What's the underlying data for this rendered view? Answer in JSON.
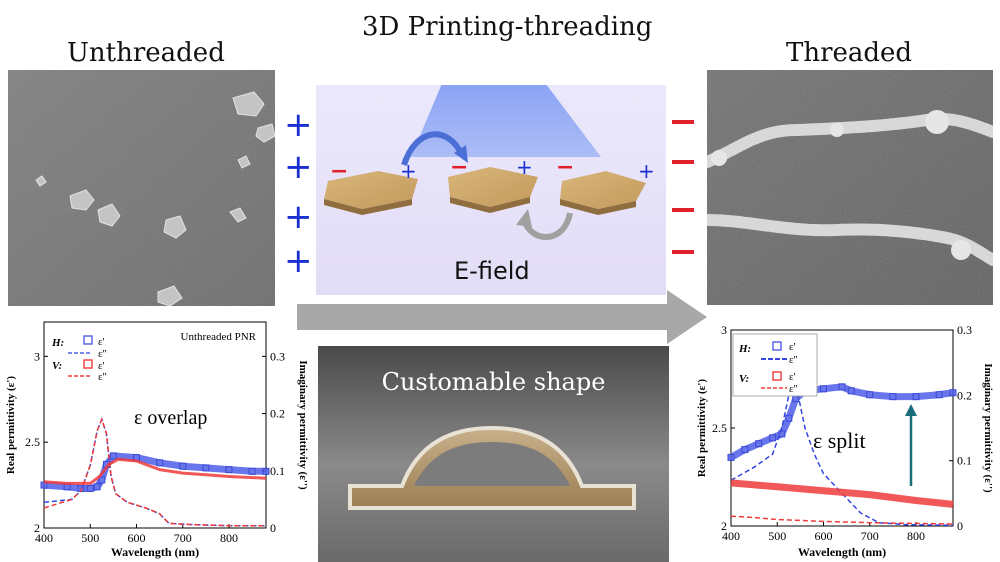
{
  "headings": {
    "unthreaded": "Unthreaded",
    "main": "3D Printing-threading",
    "threaded": "Threaded"
  },
  "diagram": {
    "efield_label": "E-field",
    "plus": "+",
    "minus": "−"
  },
  "photo": {
    "caption": "Customable shape"
  },
  "colors": {
    "blue_series": "#4f5ee8",
    "red_series": "#ee3b3b",
    "plus_sign": "#1a2fd0",
    "minus_sign": "#e0202a",
    "arrow_gray": "#a8a8a8",
    "beam": "#7f9ef5",
    "flake_gold": "#c9a56a"
  },
  "chart_data": [
    {
      "type": "line",
      "panel": "left",
      "annotation_title": "Unthreaded PNR",
      "annotation_effect": "ε overlap",
      "xlabel": "Wavelength (nm)",
      "ylabel_left": "Real permittivity (ε')",
      "ylabel_right": "Imaginary permittivity (ε'')",
      "xlim": [
        400,
        880
      ],
      "ylim_left": [
        2,
        3.2
      ],
      "ylim_right": [
        0,
        0.36
      ],
      "xticks": [
        "400",
        "500",
        "600",
        "700",
        "800"
      ],
      "yticks_left": [
        "2",
        "2.5",
        "3"
      ],
      "yticks_right": [
        "0",
        "0.1",
        "0.2",
        "0.3"
      ],
      "legend": {
        "H_label": "H:",
        "V_label": "V:",
        "real_label": "ε'",
        "imag_label": "ε''"
      },
      "series": [
        {
          "name": "H ε'",
          "axis": "left",
          "style": "markers",
          "x": [
            400,
            450,
            480,
            500,
            515,
            525,
            535,
            550,
            600,
            650,
            700,
            750,
            800,
            850,
            880
          ],
          "y": [
            2.25,
            2.24,
            2.23,
            2.23,
            2.24,
            2.28,
            2.37,
            2.42,
            2.41,
            2.38,
            2.36,
            2.35,
            2.34,
            2.33,
            2.33
          ]
        },
        {
          "name": "H ε''",
          "axis": "right",
          "style": "dashed",
          "x": [
            400,
            460,
            480,
            500,
            515,
            525,
            535,
            545,
            555,
            580,
            620,
            650,
            670,
            720,
            800,
            880
          ],
          "y": [
            0.045,
            0.05,
            0.065,
            0.11,
            0.17,
            0.19,
            0.165,
            0.09,
            0.06,
            0.045,
            0.035,
            0.025,
            0.008,
            0.006,
            0.004,
            0.004
          ]
        },
        {
          "name": "V ε'",
          "axis": "left",
          "style": "line",
          "x": [
            400,
            450,
            480,
            500,
            520,
            540,
            560,
            600,
            650,
            700,
            750,
            800,
            880
          ],
          "y": [
            2.27,
            2.26,
            2.26,
            2.26,
            2.3,
            2.37,
            2.4,
            2.39,
            2.34,
            2.32,
            2.31,
            2.3,
            2.29
          ]
        },
        {
          "name": "V ε''",
          "axis": "right",
          "style": "dashed",
          "x": [
            400,
            460,
            480,
            500,
            515,
            525,
            535,
            545,
            555,
            580,
            620,
            650,
            670,
            720,
            800,
            880
          ],
          "y": [
            0.035,
            0.05,
            0.065,
            0.11,
            0.17,
            0.19,
            0.165,
            0.09,
            0.06,
            0.045,
            0.035,
            0.025,
            0.008,
            0.006,
            0.004,
            0.004
          ]
        }
      ]
    },
    {
      "type": "line",
      "panel": "right",
      "annotation_effect": "ε  split",
      "xlabel": "Wavelength (nm)",
      "ylabel_left": "Real permittivity (ε')",
      "ylabel_right": "Imaginary permittivity (ε'')",
      "xlim": [
        400,
        880
      ],
      "ylim_left": [
        2,
        3
      ],
      "ylim_right": [
        0,
        0.3
      ],
      "xticks": [
        "400",
        "500",
        "600",
        "700",
        "800"
      ],
      "yticks_left": [
        "2",
        "2.5",
        "3"
      ],
      "yticks_right": [
        "0",
        "0.1",
        "0.2",
        "0.3"
      ],
      "legend": {
        "H_label": "H:",
        "V_label": "V:",
        "real_label": "ε'",
        "imag_label": "ε''"
      },
      "series": [
        {
          "name": "H ε'",
          "axis": "left",
          "style": "markers",
          "x": [
            400,
            430,
            460,
            490,
            510,
            525,
            540,
            560,
            600,
            640,
            660,
            700,
            750,
            800,
            850,
            880
          ],
          "y": [
            2.35,
            2.39,
            2.42,
            2.45,
            2.47,
            2.55,
            2.65,
            2.69,
            2.7,
            2.71,
            2.69,
            2.67,
            2.66,
            2.66,
            2.67,
            2.68
          ]
        },
        {
          "name": "H ε''",
          "axis": "right",
          "style": "dashed",
          "x": [
            400,
            450,
            490,
            510,
            525,
            535,
            545,
            560,
            580,
            600,
            640,
            680,
            720,
            780,
            880
          ],
          "y": [
            0.07,
            0.09,
            0.11,
            0.15,
            0.2,
            0.22,
            0.2,
            0.15,
            0.11,
            0.08,
            0.05,
            0.02,
            0.005,
            0.002,
            0.001
          ]
        },
        {
          "name": "V ε'",
          "axis": "left",
          "style": "line",
          "x": [
            400,
            500,
            600,
            700,
            800,
            880
          ],
          "y": [
            2.22,
            2.2,
            2.18,
            2.16,
            2.13,
            2.11
          ]
        },
        {
          "name": "V ε''",
          "axis": "right",
          "style": "dashed",
          "x": [
            400,
            450,
            500,
            600,
            700,
            800,
            880
          ],
          "y": [
            0.015,
            0.013,
            0.01,
            0.007,
            0.005,
            0.004,
            0.003
          ]
        }
      ]
    }
  ]
}
